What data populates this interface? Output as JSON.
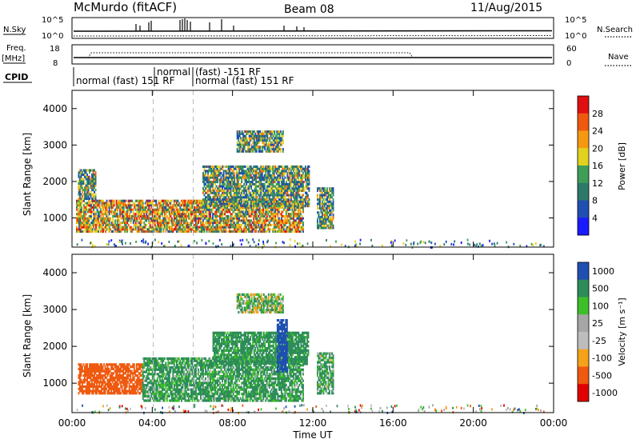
{
  "header": {
    "station": "McMurdo (fitACF)",
    "beam": "Beam 08",
    "date": "11/Aug/2015"
  },
  "summary": {
    "nsky_label": "N.Sky",
    "nsky_ticks": [
      "10^5",
      "10^0"
    ],
    "nsearch_label": "N.Search",
    "nsearch_ticks": [
      "10^5",
      "10^0"
    ],
    "freq_label_top": "Freq.",
    "freq_label_unit": "[MHz]",
    "freq_ticks": [
      "18",
      "8"
    ],
    "nave_label": "Nave",
    "nave_ticks": [
      "60",
      "0"
    ],
    "cpid_label": "CPID",
    "cpid_segments": [
      {
        "text": "normal (fast) 151 RF"
      },
      {
        "text": "normal"
      },
      {
        "text": "(fast) -151 RF"
      },
      {
        "text": "normal (fast) 151 RF"
      }
    ]
  },
  "chart_data": [
    {
      "type": "heatmap",
      "panel": "power",
      "xlabel": "Time UT",
      "ylabel": "Slant Range [km]",
      "xlim": [
        0,
        24
      ],
      "ylim": [
        200,
        4500
      ],
      "x_ticks": [
        "00:00",
        "04:00",
        "08:00",
        "12:00",
        "16:00",
        "20:00",
        "00:00"
      ],
      "y_ticks": [
        "1000",
        "2000",
        "3000",
        "4000"
      ],
      "colorbar": {
        "label": "Power [dB]",
        "ticks": [
          "4",
          "8",
          "12",
          "16",
          "20",
          "24",
          "28"
        ],
        "range": [
          0,
          30
        ]
      },
      "echo_regions": [
        {
          "t_start": 0.2,
          "t_end": 11.5,
          "range_lo": 600,
          "range_hi": 1500,
          "level": "strong"
        },
        {
          "t_start": 0.3,
          "t_end": 1.2,
          "range_lo": 1500,
          "range_hi": 2300,
          "level": "moderate"
        },
        {
          "t_start": 6.5,
          "t_end": 11.8,
          "range_lo": 1300,
          "range_hi": 2400,
          "level": "moderate"
        },
        {
          "t_start": 8.2,
          "t_end": 10.5,
          "range_lo": 2800,
          "range_hi": 3400,
          "level": "moderate"
        },
        {
          "t_start": 12.2,
          "t_end": 13.0,
          "range_lo": 700,
          "range_hi": 1800,
          "level": "moderate"
        }
      ]
    },
    {
      "type": "heatmap",
      "panel": "velocity",
      "xlabel": "Time UT",
      "ylabel": "Slant Range [km]",
      "xlim": [
        0,
        24
      ],
      "ylim": [
        200,
        4500
      ],
      "x_ticks": [
        "00:00",
        "04:00",
        "08:00",
        "12:00",
        "16:00",
        "20:00",
        "00:00"
      ],
      "y_ticks": [
        "1000",
        "2000",
        "3000",
        "4000"
      ],
      "colorbar": {
        "label": "Velocity [m s⁻¹]",
        "ticks": [
          "1000",
          "500",
          "100",
          "25",
          "-25",
          "-100",
          "-500",
          "-1000"
        ],
        "range": [
          -1200,
          1200
        ]
      },
      "echo_regions": [
        {
          "t_start": 0.3,
          "t_end": 3.5,
          "range_lo": 700,
          "range_hi": 1500,
          "velocity": -250
        },
        {
          "t_start": 3.5,
          "t_end": 11.5,
          "range_lo": 500,
          "range_hi": 1700,
          "velocity": 150
        },
        {
          "t_start": 7.0,
          "t_end": 11.8,
          "range_lo": 1500,
          "range_hi": 2400,
          "velocity": 200
        },
        {
          "t_start": 10.2,
          "t_end": 10.7,
          "range_lo": 1300,
          "range_hi": 2700,
          "velocity": 900
        },
        {
          "t_start": 8.2,
          "t_end": 10.5,
          "range_lo": 2900,
          "range_hi": 3400,
          "velocity": 60
        },
        {
          "t_start": 12.2,
          "t_end": 13.0,
          "range_lo": 700,
          "range_hi": 1800,
          "velocity": 120
        }
      ]
    }
  ]
}
